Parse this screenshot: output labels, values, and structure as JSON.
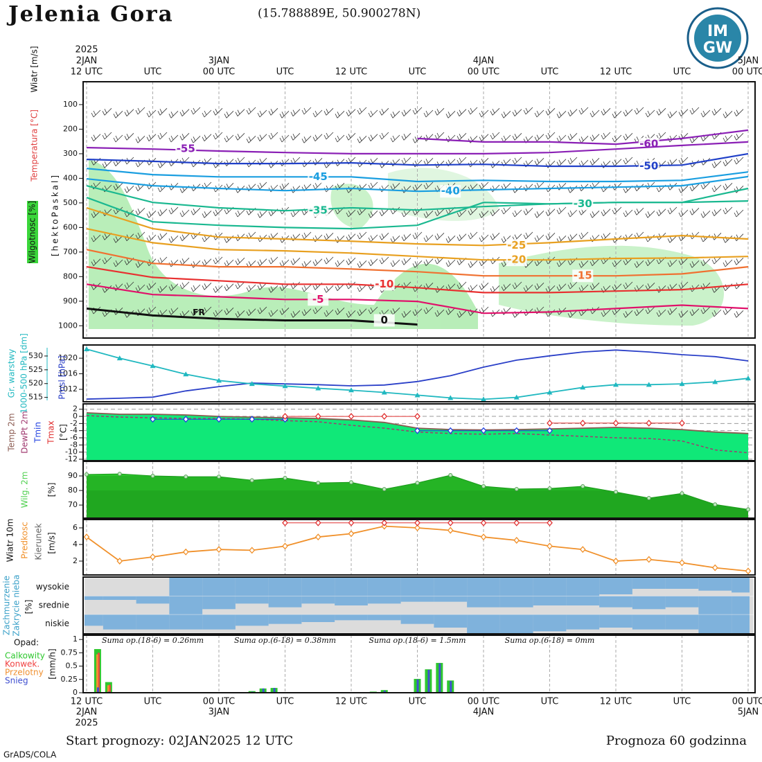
{
  "header": {
    "title": "Jelenia Gora",
    "coords": "(15.788889E, 50.900278N)",
    "logo": [
      "IM",
      "GW"
    ]
  },
  "time": {
    "year": "2025",
    "xlim": [
      0,
      60
    ],
    "xticks": [
      {
        "value": 0,
        "label": "12 UTC"
      },
      {
        "value": 6,
        "label": "UTC"
      },
      {
        "value": 12,
        "label": "00 UTC"
      },
      {
        "value": 18,
        "label": "UTC"
      },
      {
        "value": 24,
        "label": "12 UTC"
      },
      {
        "value": 30,
        "label": "UTC"
      },
      {
        "value": 36,
        "label": "00 UTC"
      },
      {
        "value": 42,
        "label": "UTC"
      },
      {
        "value": 48,
        "label": "12 UTC"
      },
      {
        "value": 54,
        "label": "UTC"
      },
      {
        "value": 60,
        "label": "00 UTC"
      }
    ],
    "dates": [
      {
        "value": 0,
        "label": "2JAN"
      },
      {
        "value": 12,
        "label": "3JAN"
      },
      {
        "value": 36,
        "label": "4JAN"
      },
      {
        "value": 60,
        "label": "5JAN"
      }
    ]
  },
  "footer": {
    "start": "Start prognozy: 02JAN2025 12 UTC",
    "length": "Prognoza 60 godzinna",
    "credit": "GrADS/COLA"
  },
  "chart_data": [
    {
      "type": "contour",
      "labels": [
        "Wiatr [m/s]",
        "Temperatura [°C]",
        "Wilgotnosc [%]",
        "[hektoPaskal]"
      ],
      "annotation": "FR",
      "x": [
        0,
        6,
        12,
        18,
        24,
        30,
        36,
        42,
        48,
        54,
        60
      ],
      "ylim": [
        1050,
        7
      ],
      "yticks": [
        100,
        200,
        300,
        400,
        500,
        600,
        700,
        800,
        900,
        1000
      ],
      "series": [
        {
          "name": "-60",
          "color": "#8a1fb5",
          "values": [
            null,
            null,
            null,
            null,
            null,
            238,
            252,
            252,
            261,
            238,
            204
          ]
        },
        {
          "name": "-55",
          "color": "#8a1fb5",
          "values": [
            275,
            281,
            289,
            295,
            300,
            300,
            300,
            295,
            281,
            266,
            252
          ]
        },
        {
          "name": "-50",
          "color": "#2040c8",
          "values": [
            323,
            331,
            340,
            340,
            337,
            346,
            343,
            351,
            351,
            346,
            300
          ]
        },
        {
          "name": "-45",
          "color": "#1a9ee0",
          "values": [
            360,
            385,
            394,
            394,
            394,
            413,
            408,
            413,
            413,
            408,
            374
          ]
        },
        {
          "name": "-40",
          "color": "#1a9ee0",
          "values": [
            402,
            430,
            441,
            450,
            441,
            453,
            447,
            441,
            436,
            430,
            393
          ]
        },
        {
          "name": "-35",
          "color": "#1ab890",
          "values": [
            430,
            498,
            520,
            532,
            520,
            529,
            515,
            504,
            498,
            498,
            441
          ]
        },
        {
          "name": "-30",
          "color": "#1ab890",
          "values": [
            478,
            577,
            591,
            600,
            605,
            591,
            498,
            504,
            498,
            498,
            492
          ]
        },
        {
          "name": "-25",
          "color": "#e8a020",
          "values": [
            520,
            605,
            639,
            647,
            656,
            667,
            673,
            662,
            647,
            633,
            647
          ]
        },
        {
          "name": "-20",
          "color": "#e8a020",
          "values": [
            605,
            662,
            690,
            695,
            704,
            718,
            732,
            732,
            726,
            724,
            718
          ]
        },
        {
          "name": "-15",
          "color": "#f07030",
          "values": [
            690,
            746,
            760,
            760,
            769,
            780,
            797,
            797,
            797,
            789,
            760
          ]
        },
        {
          "name": "-10",
          "color": "#e83030",
          "values": [
            760,
            803,
            817,
            831,
            831,
            845,
            865,
            865,
            859,
            853,
            831
          ]
        },
        {
          "name": "-5",
          "color": "#e0106a",
          "values": [
            831,
            873,
            882,
            893,
            893,
            901,
            949,
            944,
            930,
            916,
            930
          ]
        },
        {
          "name": "0",
          "color": "#111111",
          "values": [
            930,
            958,
            972,
            978,
            978,
            995,
            null,
            null,
            null,
            null,
            null
          ]
        }
      ]
    },
    {
      "type": "line",
      "labels": [
        "Gr. warstwy",
        "1000-500 hPa [dm]"
      ],
      "x": [
        0,
        3,
        6,
        9,
        12,
        15,
        18,
        21,
        24,
        27,
        30,
        33,
        36,
        39,
        42,
        45,
        48,
        51,
        54,
        57,
        60
      ],
      "ylim": [
        513.4,
        534
      ],
      "yticks": [
        515,
        520,
        525,
        530
      ],
      "y2lim": [
        1008.8,
        1023.4
      ],
      "y2ticks": [
        1012,
        1016,
        1020
      ],
      "series": [
        {
          "name": "Pmsl [hPa]",
          "color": "#2a3fc8",
          "axis": "y2",
          "values": [
            1009.5,
            1009.7,
            1010,
            1011.6,
            1012.7,
            1013.6,
            1013.4,
            1013.2,
            1012.9,
            1013.1,
            1014,
            1015.5,
            1017.7,
            1019.5,
            1020.6,
            1021.6,
            1022.1,
            1021.6,
            1020.9,
            1020.4,
            1019.3
          ]
        },
        {
          "color": "#20b8c0",
          "marker": "triangle",
          "values": [
            532.5,
            529.2,
            526.4,
            523.4,
            521.1,
            519.9,
            519.1,
            518.3,
            517.6,
            516.8,
            515.8,
            514.8,
            514.3,
            515,
            516.8,
            518.6,
            519.6,
            519.6,
            519.9,
            520.6,
            521.9
          ]
        }
      ]
    },
    {
      "type": "line",
      "unit": "[°C]",
      "x": [
        0,
        3,
        6,
        9,
        12,
        15,
        18,
        21,
        24,
        27,
        30,
        33,
        36,
        39,
        42,
        45,
        48,
        51,
        54,
        57,
        60
      ],
      "ylim": [
        -12.4,
        3.5
      ],
      "yticks": [
        2,
        0,
        -2,
        -4,
        -6,
        -8,
        -10,
        -12
      ],
      "grid": true,
      "series": [
        {
          "name": "Temp 2m",
          "color": "#8a5a50",
          "fill": "#10e878",
          "values": [
            1,
            0.6,
            0.6,
            0.4,
            0,
            -0.2,
            -0.4,
            -0.6,
            -1,
            -1.7,
            -3.3,
            -3.7,
            -3.8,
            -3.7,
            -3.5,
            -3.3,
            -3.1,
            -3.3,
            -3.7,
            -4.4,
            -4.8
          ]
        },
        {
          "name": "DewPt 2m",
          "color": "#a03a70",
          "style": "dashed",
          "values": [
            0.2,
            -0.2,
            -0.4,
            -0.6,
            -0.6,
            -0.8,
            -1.2,
            -1.5,
            -2.5,
            -3.3,
            -4.4,
            -4.8,
            -5,
            -4.8,
            -5.2,
            -5.6,
            -6,
            -6.2,
            -6.9,
            -9.4,
            -10.2
          ]
        },
        {
          "name": "Tmin",
          "color": "#2040e0",
          "marker": "diamond",
          "values": [
            null,
            null,
            -0.8,
            -0.8,
            -0.8,
            -0.8,
            -0.8,
            null,
            null,
            null,
            -4,
            -4,
            -4,
            -4,
            -4,
            null,
            null,
            null,
            null,
            null,
            null
          ]
        },
        {
          "name": "Tmax",
          "color": "#e03030",
          "marker": "diamond",
          "values": [
            null,
            null,
            null,
            null,
            null,
            null,
            0,
            0,
            0,
            0,
            0,
            null,
            null,
            null,
            -1.9,
            -1.9,
            -1.9,
            -1.9,
            -1.9,
            null,
            null
          ]
        }
      ]
    },
    {
      "type": "area",
      "unit": "[%]",
      "x": [
        0,
        3,
        6,
        9,
        12,
        15,
        18,
        21,
        24,
        27,
        30,
        33,
        36,
        39,
        42,
        45,
        48,
        51,
        54,
        57,
        60
      ],
      "ylim": [
        61,
        100
      ],
      "yticks": [
        70,
        80,
        90
      ],
      "series": [
        {
          "name": "Wilg. 2m",
          "color": "#2bc42b",
          "values": [
            91,
            91.4,
            90,
            89.5,
            89.5,
            87,
            88.6,
            85.2,
            85.6,
            80.9,
            85.2,
            90.5,
            82.9,
            81,
            81.4,
            82.9,
            79,
            74.8,
            78,
            70.4,
            67
          ]
        }
      ]
    },
    {
      "type": "line",
      "labels": [
        "Wiatr 10m",
        "Kierunek"
      ],
      "unit": "[m/s]",
      "x": [
        0,
        3,
        6,
        9,
        12,
        15,
        18,
        21,
        24,
        27,
        30,
        33,
        36,
        39,
        42,
        45,
        48,
        51,
        54,
        57,
        60
      ],
      "ylim": [
        0.33,
        7
      ],
      "yticks": [
        2,
        4,
        6
      ],
      "series": [
        {
          "name": "Predkosc",
          "color": "#f0902a",
          "marker": "diamond",
          "values": [
            4.9,
            2,
            2.5,
            3.1,
            3.4,
            3.3,
            3.8,
            4.9,
            5.3,
            6.2,
            6,
            5.7,
            4.9,
            4.5,
            3.8,
            3.4,
            2,
            2.2,
            1.8,
            1.2,
            0.8
          ]
        },
        {
          "color": "#e03030",
          "marker": "diamond",
          "values": [
            null,
            null,
            null,
            null,
            null,
            null,
            6.6,
            6.6,
            6.6,
            6.6,
            6.6,
            6.6,
            6.6,
            6.6,
            6.6,
            null,
            null,
            null,
            null,
            null,
            null
          ]
        }
      ]
    },
    {
      "type": "cloud",
      "labels": [
        "Zachmurzenie",
        "Zakrycie nieba"
      ],
      "unit": "[%]",
      "x": [
        0,
        3,
        6,
        9,
        12,
        15,
        18,
        21,
        24,
        27,
        30,
        33,
        36,
        39,
        42,
        45,
        48,
        51,
        54,
        57,
        60
      ],
      "series": [
        {
          "name": "wysokie",
          "color": "#7fb2dc",
          "values": [
            0,
            0,
            0,
            100,
            100,
            100,
            100,
            100,
            100,
            100,
            100,
            100,
            100,
            100,
            100,
            100,
            90,
            60,
            60,
            70,
            80
          ]
        },
        {
          "name": "srednie",
          "color": "#7fb2dc",
          "values": [
            20,
            20,
            40,
            100,
            70,
            40,
            60,
            40,
            50,
            40,
            30,
            30,
            60,
            60,
            50,
            50,
            60,
            70,
            60,
            100,
            100
          ]
        },
        {
          "name": "niskie",
          "color": "#7fb2dc",
          "values": [
            60,
            80,
            80,
            80,
            80,
            60,
            50,
            40,
            30,
            30,
            50,
            70,
            100,
            100,
            90,
            80,
            70,
            80,
            80,
            100,
            100
          ]
        }
      ]
    },
    {
      "type": "bar",
      "title": "Opad:",
      "unit": "[mm/h]",
      "x": [
        1,
        2,
        3,
        15,
        16,
        17,
        26,
        27,
        30,
        31,
        32,
        33
      ],
      "ylim": [
        0,
        1.08
      ],
      "yticks": [
        0,
        0.25,
        0.5,
        0.75,
        1
      ],
      "annotations": [
        {
          "x": 6,
          "text": "Suma op.(18-6) = 0.26mm"
        },
        {
          "x": 18,
          "text": "Suma op.(6-18) = 0.38mm"
        },
        {
          "x": 30,
          "text": "Suma op.(18-6) = 1.5mm"
        },
        {
          "x": 42,
          "text": "Suma op.(6-18) = 0mm"
        }
      ],
      "series": [
        {
          "name": "Calkowity",
          "color": "#2ec82e",
          "values": [
            0.82,
            0.2,
            0.01,
            0.03,
            0.08,
            0.09,
            0.02,
            0.05,
            0.26,
            0.44,
            0.56,
            0.23
          ]
        },
        {
          "name": "Konwek.",
          "color": "#f04040",
          "values": [
            0.75,
            0.15,
            0,
            0,
            0,
            0,
            0,
            0,
            0,
            0,
            0,
            0
          ]
        },
        {
          "name": "Przelotny",
          "color": "#f09030",
          "values": [
            0.72,
            0.14,
            0,
            0,
            0,
            0,
            0,
            0,
            0,
            0,
            0,
            0
          ]
        },
        {
          "name": "Snieg",
          "color": "#4050d0",
          "values": [
            0.1,
            0.02,
            0,
            0.02,
            0.08,
            0.09,
            0.01,
            0.04,
            0.25,
            0.43,
            0.55,
            0.22
          ]
        }
      ]
    }
  ]
}
